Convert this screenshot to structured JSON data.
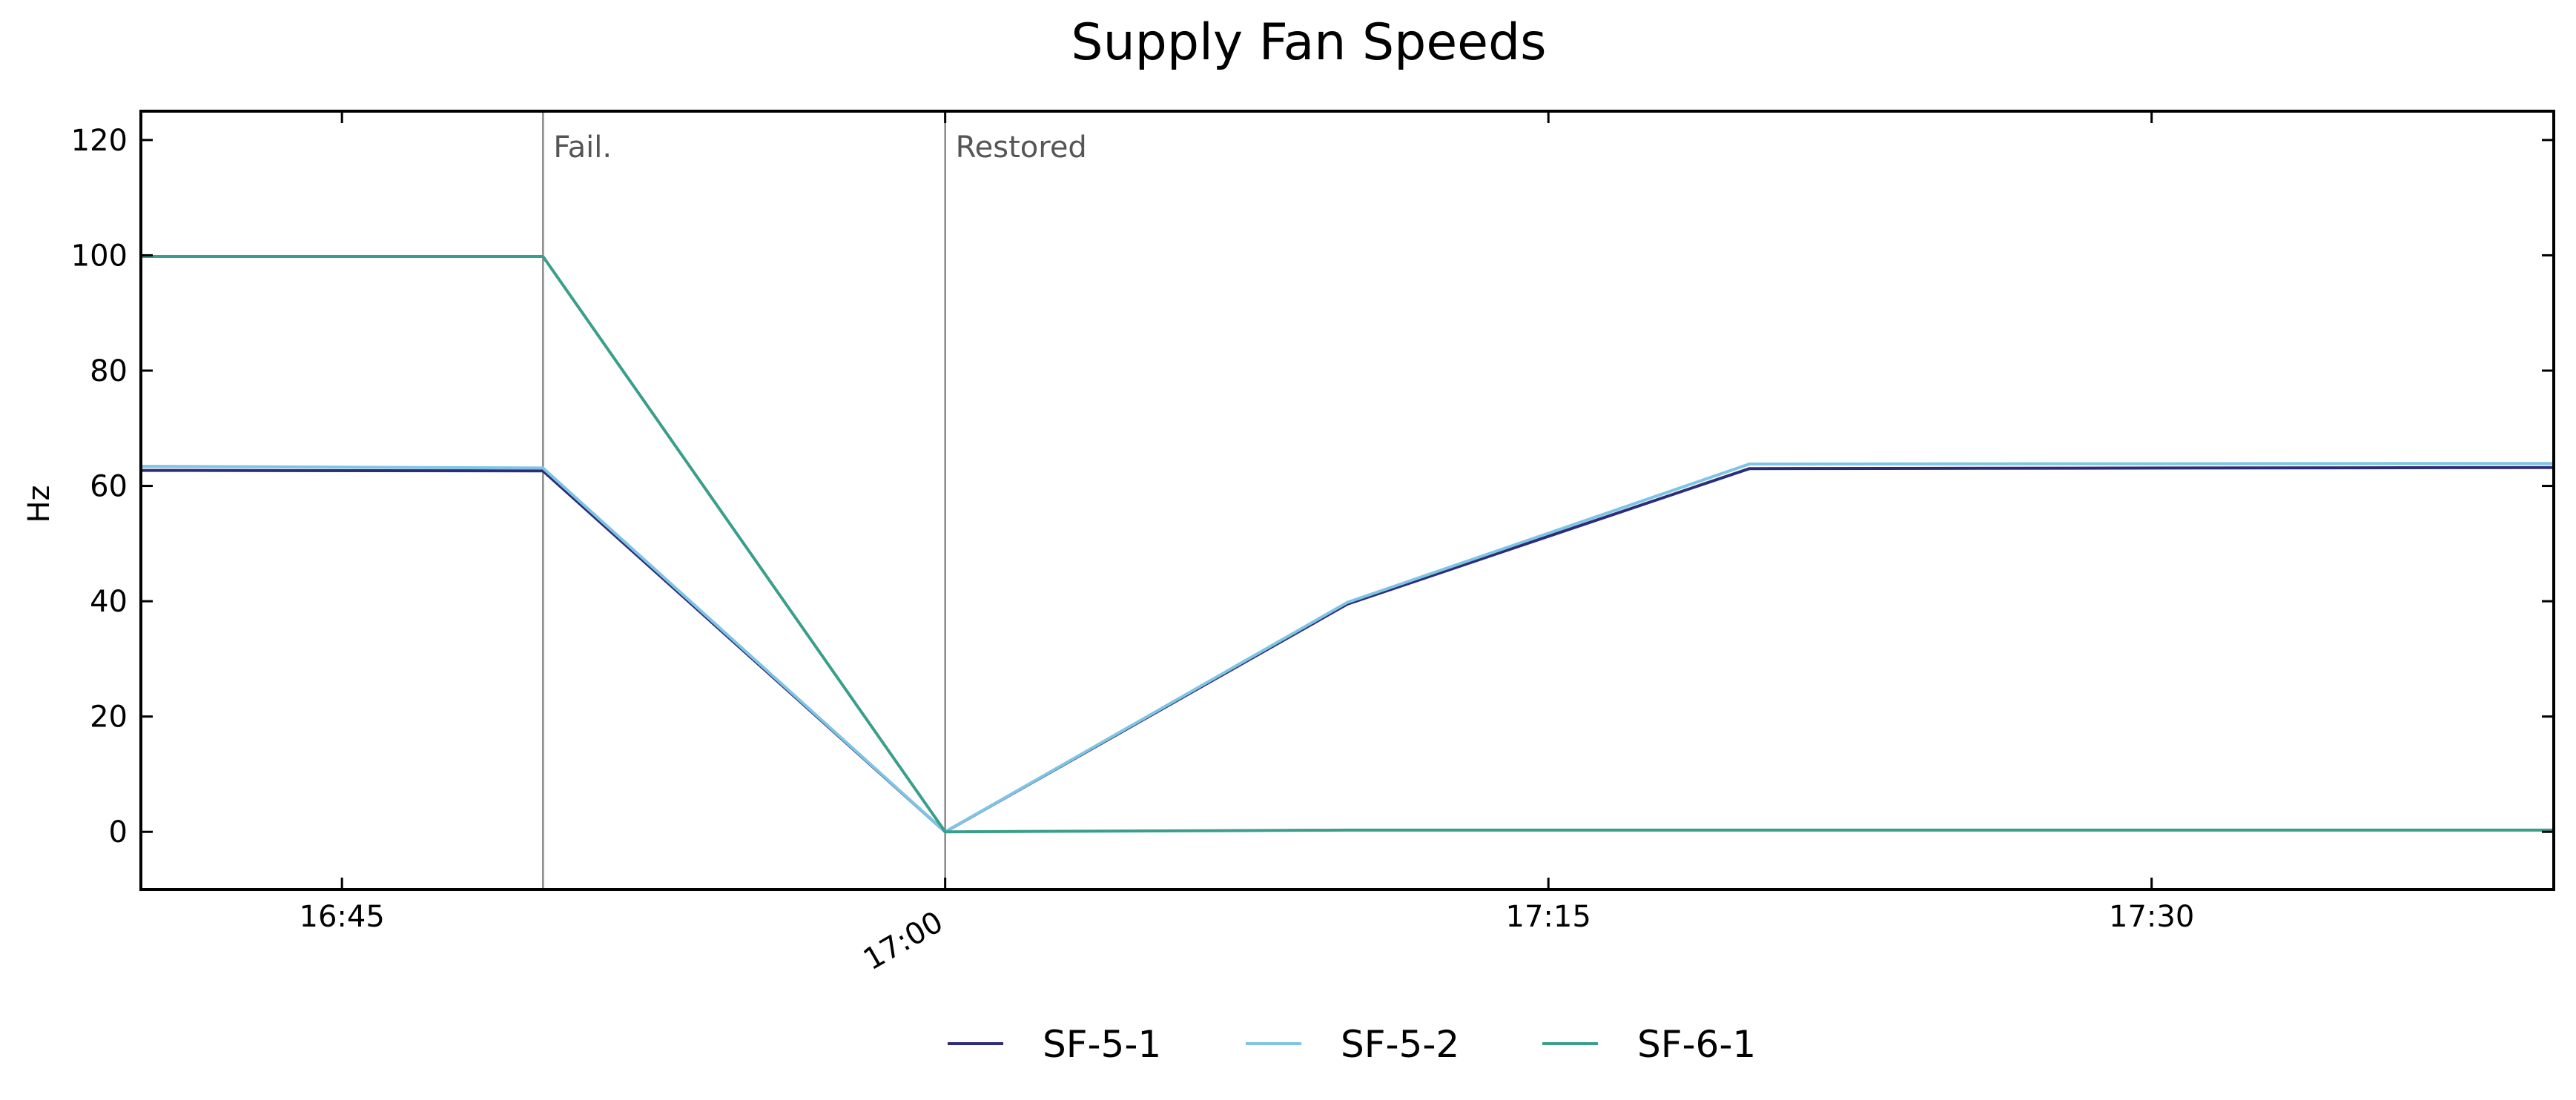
{
  "chart_data": {
    "type": "line",
    "title": "Supply Fan Speeds",
    "xlabel": "",
    "ylabel": "Hz",
    "xlim": [
      "16:40",
      "17:40"
    ],
    "ylim": [
      -10,
      125
    ],
    "yticks": [
      0,
      20,
      40,
      60,
      80,
      100,
      120
    ],
    "xticks": [
      {
        "t": "16:45",
        "label": "16:45",
        "rotated": false
      },
      {
        "t": "17:00",
        "label": "17:00",
        "rotated": true
      },
      {
        "t": "17:15",
        "label": "17:15",
        "rotated": false
      },
      {
        "t": "17:30",
        "label": "17:30",
        "rotated": false
      }
    ],
    "grid": false,
    "legend_position": "bottom-center",
    "annotations": [
      {
        "t": "16:50",
        "label": "Fail."
      },
      {
        "t": "17:00",
        "label": "Restored"
      }
    ],
    "series": [
      {
        "name": "SF-5-1",
        "color": "#2b2d7a",
        "points": [
          [
            "16:40",
            62.7
          ],
          [
            "16:50",
            62.6
          ],
          [
            "17:00",
            0
          ],
          [
            "17:10",
            39.5
          ],
          [
            "17:20",
            63.0
          ],
          [
            "17:40",
            63.2
          ]
        ]
      },
      {
        "name": "SF-5-2",
        "color": "#7fc4e3",
        "points": [
          [
            "16:40",
            63.4
          ],
          [
            "16:50",
            63.1
          ],
          [
            "17:00",
            0
          ],
          [
            "17:10",
            39.8
          ],
          [
            "17:20",
            63.8
          ],
          [
            "17:40",
            63.9
          ]
        ]
      },
      {
        "name": "SF-6-1",
        "color": "#3a9e8c",
        "points": [
          [
            "16:40",
            99.8
          ],
          [
            "16:50",
            99.8
          ],
          [
            "17:00",
            0
          ],
          [
            "17:10",
            0.3
          ],
          [
            "17:20",
            0.3
          ],
          [
            "17:40",
            0.3
          ]
        ]
      }
    ]
  }
}
